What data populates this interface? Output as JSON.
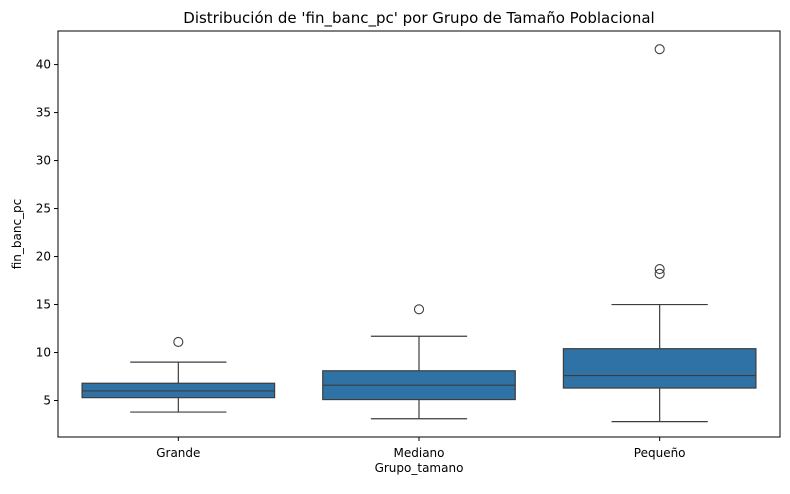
{
  "chart_data": {
    "type": "box",
    "title": "Distribución de 'fin_banc_pc' por Grupo de Tamaño Poblacional",
    "xlabel": "Grupo_tamano",
    "ylabel": "fin_banc_pc",
    "ylim": [
      1.2,
      43.5
    ],
    "yticks": [
      5,
      10,
      15,
      20,
      25,
      30,
      35,
      40
    ],
    "grid": false,
    "box_color": "#2f72a5",
    "line_color": "#3d3d3d",
    "boxes": [
      {
        "category": "Grande",
        "whisker_low": 3.8,
        "q1": 5.3,
        "median": 6.0,
        "q3": 6.8,
        "whisker_high": 9.0,
        "outliers": [
          11.1
        ]
      },
      {
        "category": "Mediano",
        "whisker_low": 3.1,
        "q1": 5.1,
        "median": 6.6,
        "q3": 8.1,
        "whisker_high": 11.7,
        "outliers": [
          14.5
        ]
      },
      {
        "category": "Pequeño",
        "whisker_low": 2.8,
        "q1": 6.3,
        "median": 7.6,
        "q3": 10.4,
        "whisker_high": 15.0,
        "outliers": [
          18.2,
          18.7,
          41.6
        ]
      }
    ]
  }
}
